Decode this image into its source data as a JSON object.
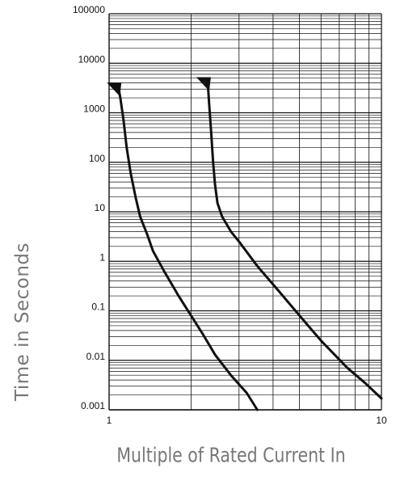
{
  "chart_data": {
    "type": "line",
    "title": "",
    "xlabel": "Multiple of Rated Current In",
    "ylabel": "Time in Seconds",
    "xscale": "log",
    "yscale": "log",
    "xlim": [
      1,
      10
    ],
    "ylim": [
      0.001,
      100000
    ],
    "x_ticks": [
      "1",
      "10"
    ],
    "y_ticks": [
      "0.001",
      "0.01",
      "0.1",
      "1",
      "10",
      "100",
      "1000",
      "10000",
      "100000"
    ],
    "grid": true,
    "series": [
      {
        "points": [
          [
            1.08,
            3500
          ],
          [
            1.1,
            2000
          ],
          [
            1.13,
            700
          ],
          [
            1.16,
            200
          ],
          [
            1.2,
            60
          ],
          [
            1.25,
            20
          ],
          [
            1.3,
            8
          ],
          [
            1.38,
            3.5
          ],
          [
            1.45,
            1.6
          ],
          [
            1.6,
            0.6
          ],
          [
            1.8,
            0.2
          ],
          [
            2.0,
            0.08
          ],
          [
            2.2,
            0.035
          ],
          [
            2.45,
            0.013
          ],
          [
            2.8,
            0.005
          ],
          [
            3.2,
            0.0022
          ],
          [
            3.5,
            0.001
          ]
        ],
        "marker": "triangle-arrow",
        "color": "#111111"
      },
      {
        "points": [
          [
            2.3,
            4500
          ],
          [
            2.33,
            1500
          ],
          [
            2.37,
            400
          ],
          [
            2.41,
            100
          ],
          [
            2.45,
            35
          ],
          [
            2.5,
            15
          ],
          [
            2.6,
            8
          ],
          [
            2.8,
            4
          ],
          [
            3.0,
            2.5
          ],
          [
            3.5,
            0.8
          ],
          [
            4.2,
            0.25
          ],
          [
            5.0,
            0.08
          ],
          [
            6.0,
            0.025
          ],
          [
            7.5,
            0.007
          ],
          [
            8.7,
            0.0035
          ],
          [
            10,
            0.0017
          ]
        ],
        "marker": "triangle-arrow",
        "color": "#111111"
      }
    ]
  }
}
